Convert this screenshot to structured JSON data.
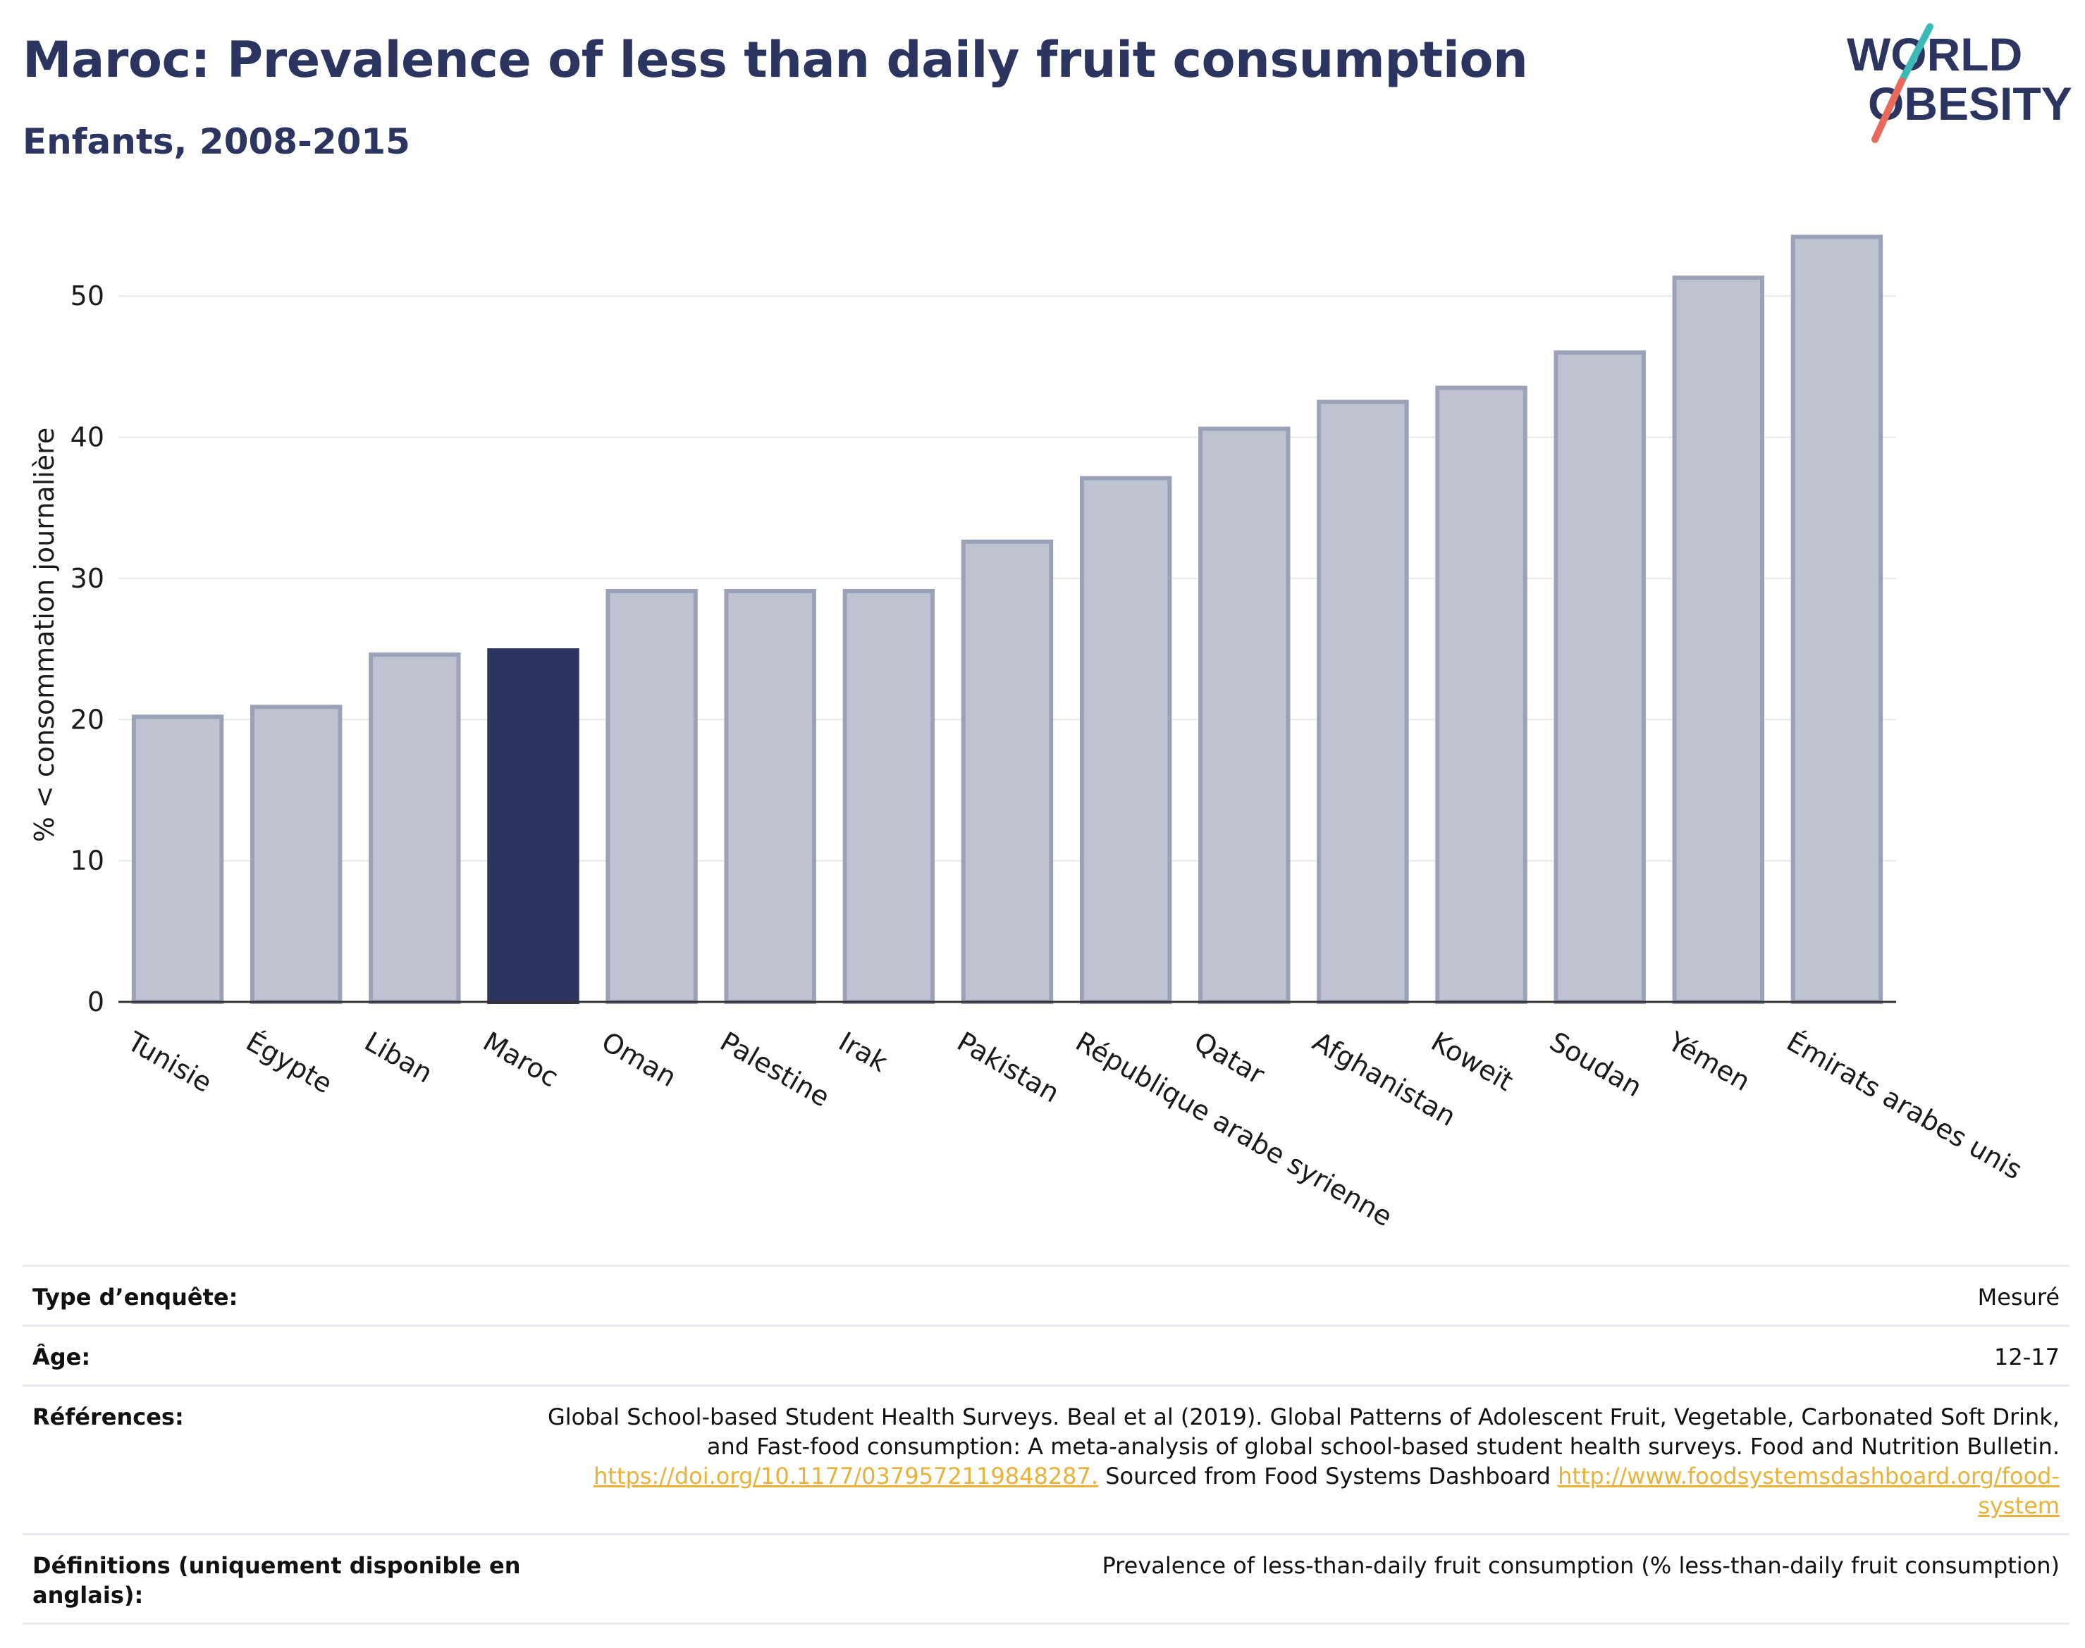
{
  "header": {
    "title": "Maroc: Prevalence of less than daily fruit consumption",
    "subtitle": "Enfants, 2008-2015"
  },
  "logo": {
    "line1": "WORLD",
    "line2": "OBESITY",
    "colors": {
      "text": "#2b3560",
      "slash_teal": "#3bb8b8",
      "slash_red": "#e86a5a"
    }
  },
  "chart_data": {
    "type": "bar",
    "ylabel": "% < consommation journalière",
    "xlabel": "",
    "ylim": [
      0,
      56
    ],
    "yticks": [
      0,
      10,
      20,
      30,
      40,
      50
    ],
    "grid": true,
    "categories": [
      "Tunisie",
      "Égypte",
      "Liban",
      "Maroc",
      "Oman",
      "Palestine",
      "Irak",
      "Pakistan",
      "République arabe syrienne",
      "Qatar",
      "Afghanistan",
      "Koweït",
      "Soudan",
      "Yémen",
      "Émirats arabes unis"
    ],
    "values": [
      20.2,
      20.9,
      24.6,
      24.9,
      29.1,
      29.1,
      29.1,
      32.6,
      37.1,
      40.6,
      42.5,
      43.5,
      46.0,
      51.3,
      54.2
    ],
    "highlight": "Maroc",
    "colors": {
      "bar": "#bfc3d1",
      "bar_edge": "#9ba2b8",
      "highlight": "#2b3560",
      "grid": "#e6e8ec",
      "axis": "#333333"
    }
  },
  "meta": {
    "survey_type": {
      "label": "Type d’enquête:",
      "value": "Mesuré"
    },
    "age": {
      "label": "Âge:",
      "value": "12-17"
    },
    "references": {
      "label": "Références:",
      "text1": "Global School-based Student Health Surveys. Beal et al (2019). Global Patterns of Adolescent Fruit, Vegetable, Carbonated Soft Drink, and Fast-food consumption: A meta-analysis of global school-based student health surveys. Food and Nutrition Bulletin.",
      "link1": "https://doi.org/10.1177/0379572119848287.",
      "text2": "Sourced from Food Systems Dashboard",
      "link2": "http://www.foodsystemsdashboard.org/food-system"
    },
    "definitions": {
      "label": "Définitions (uniquement disponible en anglais):",
      "value": "Prevalence of less-than-daily fruit consumption (% less-than-daily fruit consumption)"
    }
  }
}
